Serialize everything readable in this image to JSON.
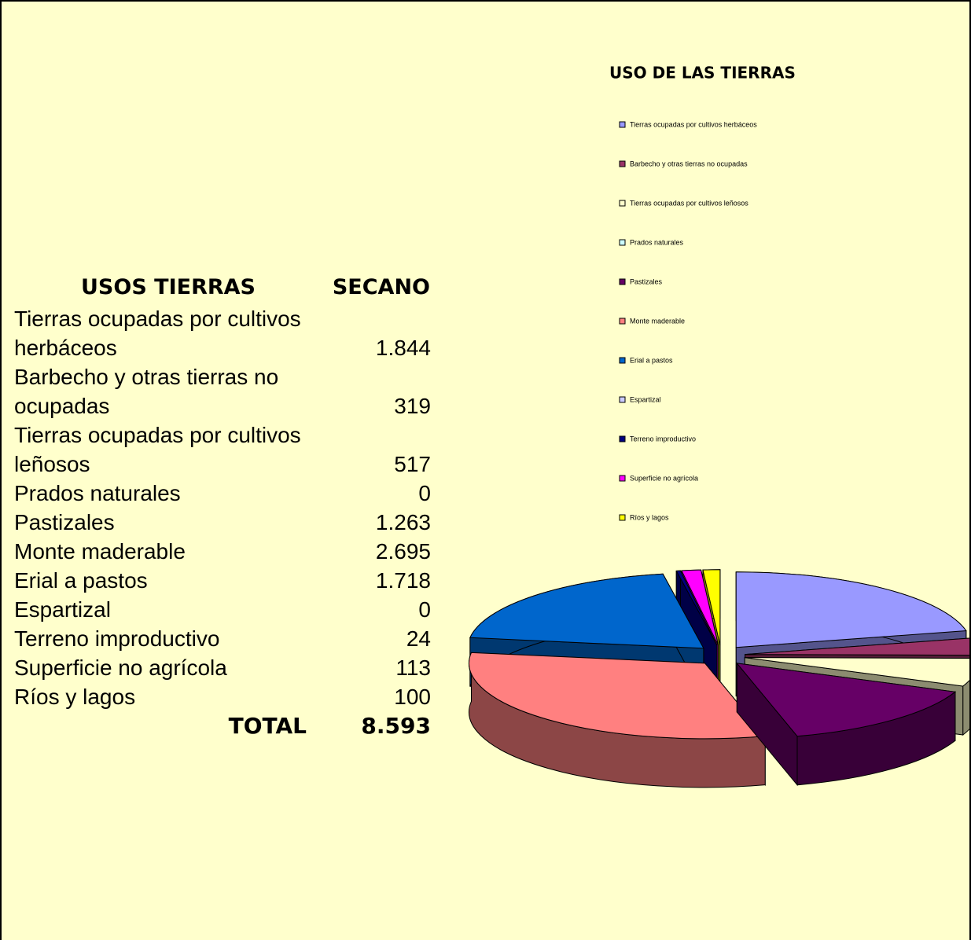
{
  "table": {
    "header": [
      "USOS TIERRAS",
      "SECANO"
    ],
    "rows": [
      [
        "Tierras ocupadas por cultivos herbáceos",
        "1.844"
      ],
      [
        "Barbecho y otras tierras no ocupadas",
        "319"
      ],
      [
        "Tierras ocupadas por cultivos leñosos",
        "517"
      ],
      [
        "Prados naturales",
        "0"
      ],
      [
        "Pastizales",
        "1.263"
      ],
      [
        "Monte maderable",
        "2.695"
      ],
      [
        "Erial a pastos",
        "1.718"
      ],
      [
        "Espartizal",
        "0"
      ],
      [
        "Terreno improductivo",
        "24"
      ],
      [
        "Superficie no agrícola",
        "113"
      ],
      [
        "Ríos y lagos",
        "100"
      ]
    ],
    "total": [
      "TOTAL",
      "8.593"
    ]
  },
  "chart_data": {
    "type": "pie",
    "title": "USO DE LAS TIERRAS",
    "categories": [
      "Tierras ocupadas por cultivos herbáceos",
      "Barbecho y otras tierras no ocupadas",
      "Tierras ocupadas por cultivos leñosos",
      "Prados naturales",
      "Pastizales",
      "Monte maderable",
      "Erial a pastos",
      "Espartizal",
      "Terreno improductivo",
      "Superficie no agrícola",
      "Ríos y lagos"
    ],
    "values": [
      1844,
      319,
      517,
      0,
      1263,
      2695,
      1718,
      0,
      24,
      113,
      100
    ],
    "colors": [
      "#9999ff",
      "#993366",
      "#ffffcc",
      "#ccffff",
      "#660066",
      "#ff8080",
      "#0066cc",
      "#ccccff",
      "#000080",
      "#ff00ff",
      "#ffff00"
    ],
    "legend": "right"
  }
}
